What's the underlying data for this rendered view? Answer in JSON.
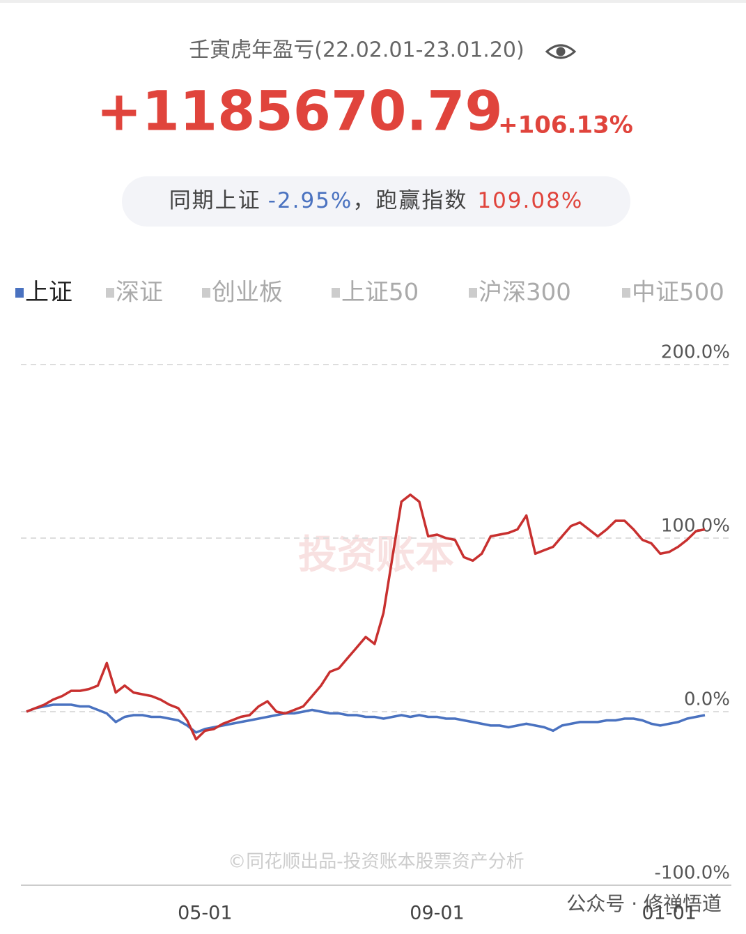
{
  "header": {
    "title": "壬寅虎年盈亏(22.02.01-23.01.20)",
    "profit": "+1185670.79",
    "return": "+106.13%",
    "compare_label": "同期上证",
    "compare_value": "-2.95%",
    "beat_label": "，跑赢指数",
    "beat_value": "109.08%"
  },
  "chart_data": {
    "type": "line",
    "tabs": [
      "上证",
      "深证",
      "创业板",
      "上证50",
      "沪深300",
      "中证500"
    ],
    "active_tab": 0,
    "categories": [
      null,
      null,
      null,
      null,
      null,
      null,
      null,
      null,
      null,
      null,
      null,
      null,
      null,
      null,
      null,
      null,
      null,
      null,
      null,
      null,
      "05-01",
      null,
      null,
      null,
      null,
      null,
      null,
      null,
      null,
      null,
      null,
      null,
      null,
      null,
      null,
      null,
      null,
      null,
      null,
      null,
      null,
      null,
      null,
      null,
      null,
      null,
      "09-01",
      null,
      null,
      null,
      null,
      null,
      null,
      null,
      null,
      null,
      null,
      null,
      null,
      null,
      null,
      null,
      null,
      null,
      null,
      null,
      null,
      null,
      null,
      null,
      null,
      null,
      "01-01",
      null,
      null,
      null,
      null
    ],
    "series": [
      {
        "color": "#c8302f",
        "values": [
          0,
          2,
          4,
          7,
          9,
          12,
          12,
          13,
          15,
          28,
          11,
          15,
          11,
          10,
          9,
          7,
          4,
          2,
          -5,
          -16,
          -11,
          -10,
          -7,
          -5,
          -3,
          -2,
          3,
          6,
          0,
          -1,
          1,
          3,
          9,
          15,
          23,
          25,
          31,
          37,
          43,
          39,
          57,
          89,
          121,
          125,
          121,
          101,
          102,
          100,
          99,
          89,
          87,
          91,
          101,
          102,
          103,
          105,
          113,
          91,
          93,
          95,
          101,
          107,
          109,
          105,
          101,
          105,
          110,
          110,
          105,
          99,
          97,
          91,
          92,
          95,
          99,
          104,
          105
        ]
      },
      {
        "color": "#4a72c0",
        "values": [
          0,
          2,
          3,
          4,
          4,
          4,
          3,
          3,
          1,
          -1,
          -6,
          -3,
          -2,
          -2,
          -3,
          -3,
          -4,
          -5,
          -8,
          -12,
          -10,
          -9,
          -8,
          -7,
          -6,
          -5,
          -4,
          -3,
          -2,
          -1,
          -1,
          0,
          1,
          0,
          -1,
          -1,
          -2,
          -2,
          -3,
          -3,
          -4,
          -3,
          -2,
          -3,
          -2,
          -3,
          -3,
          -4,
          -4,
          -5,
          -6,
          -7,
          -8,
          -8,
          -9,
          -8,
          -7,
          -8,
          -9,
          -11,
          -8,
          -7,
          -6,
          -6,
          -6,
          -5,
          -5,
          -4,
          -4,
          -5,
          -7,
          -8,
          -7,
          -6,
          -4,
          -3,
          -2
        ]
      }
    ],
    "ylim": [
      -100,
      200
    ],
    "yticks": [
      {
        "value": -100,
        "label": "-100.0%"
      },
      {
        "value": 0,
        "label": "0.0%"
      },
      {
        "value": 100,
        "label": "100.0%"
      },
      {
        "value": 200,
        "label": "200.0%"
      }
    ],
    "grid": true
  },
  "watermark": "投资账本",
  "credit": "©同花顺出品-投资账本股票资产分析",
  "account": "公众号 · 修禅悟道"
}
